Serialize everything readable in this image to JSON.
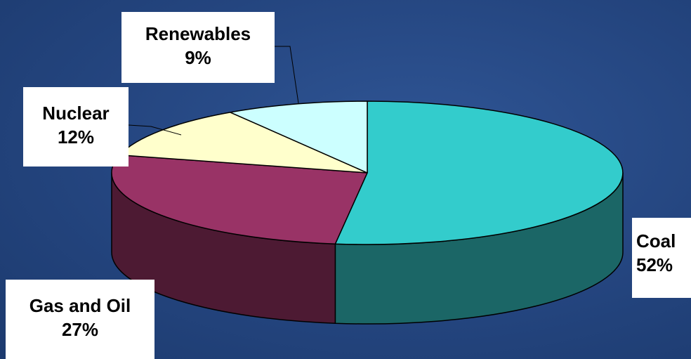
{
  "chart_data": {
    "type": "pie",
    "three_d": true,
    "slices": [
      {
        "label": "Coal",
        "value": 52,
        "value_label": "52%",
        "color": "#33cccc",
        "side_color": "#1b6666"
      },
      {
        "label": "Gas and Oil",
        "value": 27,
        "value_label": "27%",
        "color": "#993366",
        "side_color": "#4d1a33"
      },
      {
        "label": "Nuclear",
        "value": 12,
        "value_label": "12%",
        "color": "#ffffcc",
        "side_color": "#808066"
      },
      {
        "label": "Renewables",
        "value": 9,
        "value_label": "9%",
        "color": "#ccffff",
        "side_color": "#668080"
      }
    ],
    "legend": "none",
    "background": "#24457f"
  }
}
